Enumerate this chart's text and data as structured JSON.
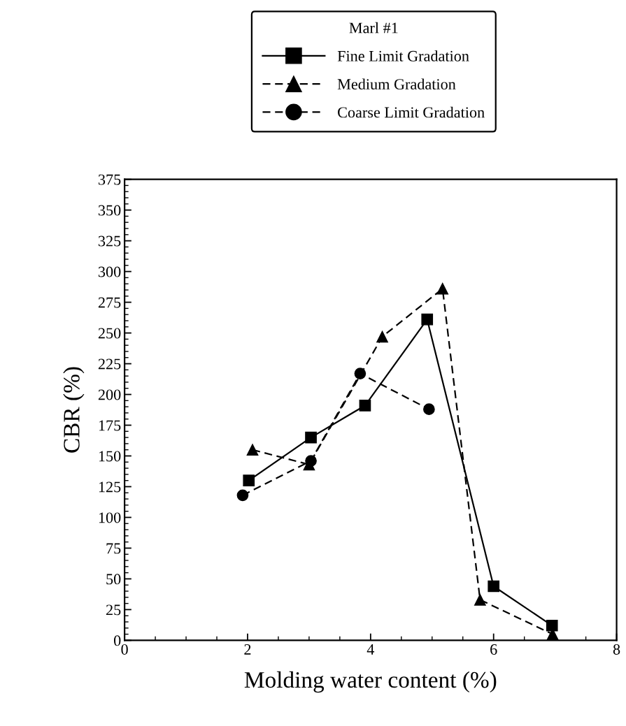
{
  "chart_data": {
    "type": "line",
    "xlabel": "Molding water content (%)",
    "ylabel": "CBR (%)",
    "legend_title": "Marl #1",
    "legend": "top",
    "grid": false,
    "xlim": [
      0,
      8
    ],
    "xticks": [
      0,
      2,
      4,
      6,
      8
    ],
    "ylim": [
      0,
      375
    ],
    "yticks": [
      0,
      25,
      50,
      75,
      100,
      125,
      150,
      175,
      200,
      225,
      250,
      275,
      300,
      325,
      350,
      375
    ],
    "series": [
      {
        "name": "Fine Limit Gradation",
        "color": "#000000",
        "marker": "square",
        "line_style": "solid",
        "x": [
          2.02,
          3.03,
          3.91,
          4.92,
          6.0,
          6.95
        ],
        "values": [
          130,
          165,
          191,
          261,
          44,
          12
        ]
      },
      {
        "name": "Medium Gradation",
        "color": "#000000",
        "marker": "triangle",
        "line_style": "dashed",
        "x": [
          2.08,
          3.0,
          4.19,
          5.17,
          5.78,
          6.96
        ],
        "values": [
          155,
          143,
          247,
          286,
          33,
          5
        ]
      },
      {
        "name": "Coarse Limit Gradation",
        "color": "#000000",
        "marker": "circle",
        "line_style": "dashed",
        "x": [
          1.92,
          3.03,
          3.83,
          4.95
        ],
        "values": [
          118,
          146,
          217,
          188
        ]
      }
    ]
  }
}
